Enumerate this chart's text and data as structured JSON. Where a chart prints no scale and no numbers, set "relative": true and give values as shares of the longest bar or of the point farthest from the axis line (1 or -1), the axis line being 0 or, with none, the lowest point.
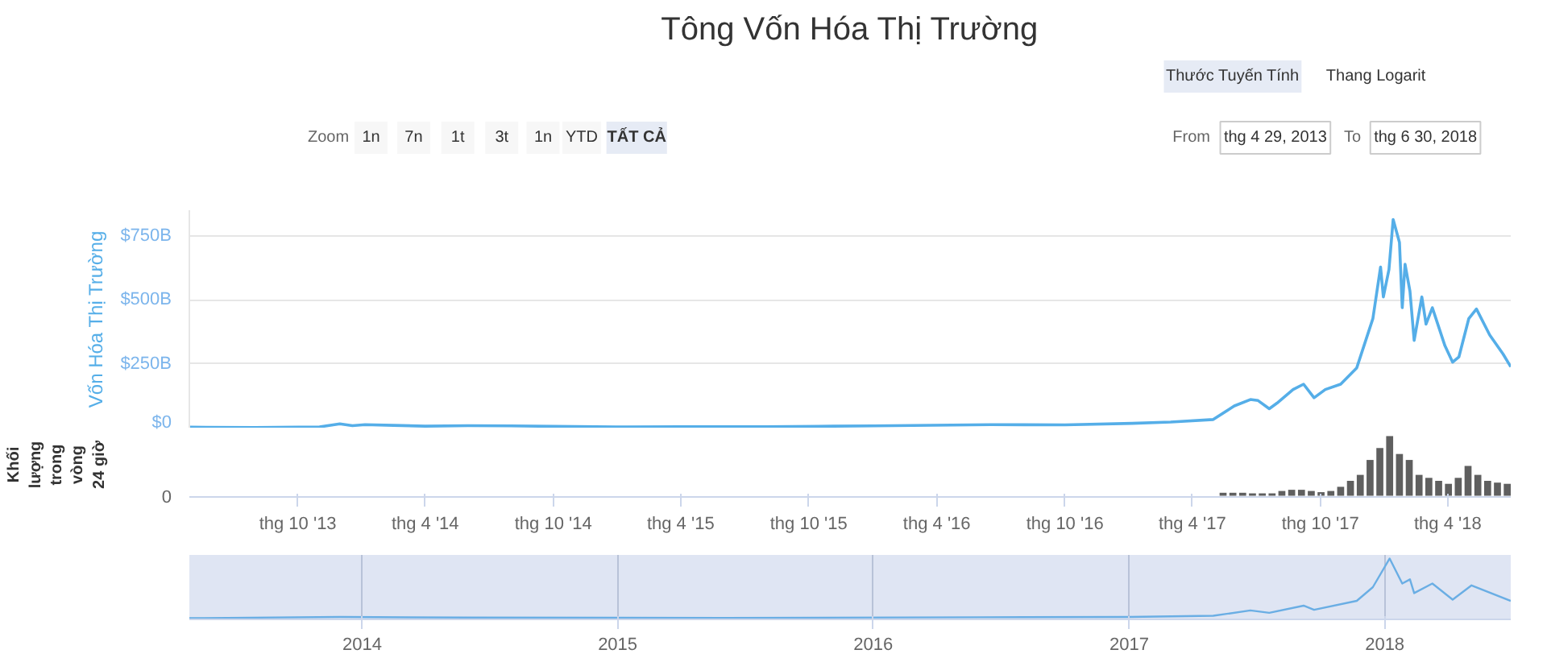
{
  "chart_data": [
    {
      "type": "line",
      "title": "Tông Vốn Hóa Thị Trường",
      "ylabel": "Vốn Hóa Thị Trường",
      "xlim": [
        "2013-04-29",
        "2018-06-30"
      ],
      "ylim": [
        0,
        850
      ],
      "yticks": [
        {
          "value": 0,
          "label": "$0"
        },
        {
          "value": 250,
          "label": "$250B"
        },
        {
          "value": 500,
          "label": "$500B"
        },
        {
          "value": 750,
          "label": "$750B"
        }
      ],
      "tick_labels": "y",
      "grid": "y",
      "annotations": [
        "Thước Tuyến Tính",
        "Thang Logarit",
        "Zoom",
        "1n",
        "7n",
        "1t",
        "3t",
        "1n",
        "YTD",
        "TẤT CẢ",
        "From",
        "thg 4 29, 2013",
        "To",
        "thg 6 30, 2018"
      ],
      "series": [
        {
          "color": "#55aee8",
          "x": [
            "2013-04-29",
            "2013-08-01",
            "2013-11-01",
            "2013-11-30",
            "2013-12-18",
            "2014-01-05",
            "2014-02-15",
            "2014-04-01",
            "2014-06-01",
            "2014-08-01",
            "2014-10-01",
            "2015-01-15",
            "2015-04-01",
            "2015-08-01",
            "2015-11-05",
            "2016-01-01",
            "2016-06-17",
            "2016-10-01",
            "2017-01-05",
            "2017-03-01",
            "2017-05-01",
            "2017-05-31",
            "2017-06-23",
            "2017-07-04",
            "2017-07-20",
            "2017-07-31",
            "2017-08-23",
            "2017-09-07",
            "2017-09-22",
            "2017-10-08",
            "2017-10-30",
            "2017-11-22",
            "2017-12-15",
            "2017-12-26",
            "2017-12-30",
            "2018-01-07",
            "2018-01-13",
            "2018-01-22",
            "2018-01-26",
            "2018-01-30",
            "2018-02-06",
            "2018-02-12",
            "2018-02-23",
            "2018-03-01",
            "2018-03-10",
            "2018-03-28",
            "2018-04-08",
            "2018-04-17",
            "2018-05-01",
            "2018-05-12",
            "2018-05-31",
            "2018-06-19",
            "2018-06-30"
          ],
          "values": [
            2,
            1,
            3,
            15,
            8,
            12,
            9,
            6,
            8,
            7,
            5,
            3,
            4,
            4,
            6,
            7,
            12,
            11,
            17,
            22,
            32,
            85,
            110,
            106,
            74,
            96,
            149,
            170,
            117,
            149,
            170,
            234,
            426,
            628,
            511,
            618,
            814,
            724,
            469,
            639,
            533,
            341,
            511,
            405,
            469,
            320,
            256,
            277,
            426,
            464,
            362,
            288,
            238
          ]
        }
      ]
    },
    {
      "type": "bar",
      "relative": true,
      "ylabel": "Khối lượng trong vòng 24 giờ",
      "annotations": [
        "0"
      ],
      "xlim": [
        "2013-04-29",
        "2018-06-30"
      ],
      "xticks": [
        {
          "value": "2013-10-01",
          "label": "thg 10 '13"
        },
        {
          "value": "2014-04-01",
          "label": "thg 4 '14"
        },
        {
          "value": "2014-10-01",
          "label": "thg 10 '14"
        },
        {
          "value": "2015-04-01",
          "label": "thg 4 '15"
        },
        {
          "value": "2015-10-01",
          "label": "thg 10 '15"
        },
        {
          "value": "2016-04-01",
          "label": "thg 4 '16"
        },
        {
          "value": "2016-10-01",
          "label": "thg 10 '16"
        },
        {
          "value": "2017-04-01",
          "label": "thg 4 '17"
        },
        {
          "value": "2017-10-01",
          "label": "thg 10 '17"
        },
        {
          "value": "2018-04-01",
          "label": "thg 4 '18"
        }
      ],
      "tick_labels": "x",
      "series": [
        {
          "color": "#5f5f5f",
          "x": [
            "2017-05-15",
            "2017-05-29",
            "2017-06-12",
            "2017-06-26",
            "2017-07-10",
            "2017-07-24",
            "2017-08-07",
            "2017-08-21",
            "2017-09-04",
            "2017-09-18",
            "2017-10-02",
            "2017-10-16",
            "2017-10-30",
            "2017-11-13",
            "2017-11-27",
            "2017-12-11",
            "2017-12-25",
            "2018-01-08",
            "2018-01-22",
            "2018-02-05",
            "2018-02-19",
            "2018-03-05",
            "2018-03-19",
            "2018-04-02",
            "2018-04-16",
            "2018-04-30",
            "2018-05-14",
            "2018-05-28",
            "2018-06-11",
            "2018-06-25"
          ],
          "values": [
            0.05,
            0.05,
            0.05,
            0.04,
            0.04,
            0.04,
            0.08,
            0.1,
            0.1,
            0.08,
            0.06,
            0.08,
            0.15,
            0.25,
            0.35,
            0.6,
            0.8,
            1.0,
            0.7,
            0.6,
            0.35,
            0.3,
            0.25,
            0.2,
            0.3,
            0.5,
            0.35,
            0.25,
            0.22,
            0.2
          ]
        }
      ]
    },
    {
      "type": "line",
      "relative": true,
      "xlim": [
        "2013-04-29",
        "2018-06-30"
      ],
      "xticks": [
        {
          "value": "2014-01-01",
          "label": "2014"
        },
        {
          "value": "2015-01-01",
          "label": "2015"
        },
        {
          "value": "2016-01-01",
          "label": "2016"
        },
        {
          "value": "2017-01-01",
          "label": "2017"
        },
        {
          "value": "2018-01-01",
          "label": "2018"
        }
      ],
      "tick_labels": "x",
      "grid": "x",
      "series": [
        {
          "color": "#6aaee4",
          "x": [
            "2013-04-29",
            "2013-12-01",
            "2014-06-01",
            "2015-06-01",
            "2016-06-01",
            "2017-01-01",
            "2017-05-01",
            "2017-06-23",
            "2017-07-20",
            "2017-09-07",
            "2017-09-22",
            "2017-11-22",
            "2017-12-15",
            "2018-01-08",
            "2018-01-26",
            "2018-02-06",
            "2018-02-12",
            "2018-03-10",
            "2018-04-08",
            "2018-05-05",
            "2018-06-30"
          ],
          "values": [
            0,
            0.02,
            0.01,
            0.005,
            0.015,
            0.02,
            0.04,
            0.13,
            0.09,
            0.21,
            0.14,
            0.29,
            0.52,
            1.0,
            0.58,
            0.65,
            0.42,
            0.58,
            0.31,
            0.55,
            0.29
          ]
        }
      ]
    }
  ]
}
